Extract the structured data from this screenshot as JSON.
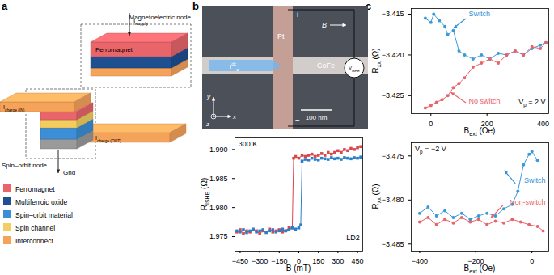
{
  "panel_labels": [
    "a",
    "b",
    "c"
  ],
  "diagram": {
    "magnetoelectric_node": "Magnetoelectric node",
    "spin_orbit_node": "Spin–orbit node",
    "supply_current": [
      {
        "t": "I"
      },
      {
        "t": "supply",
        "sub": true
      }
    ],
    "input_current": [
      {
        "t": "I"
      },
      {
        "t": "charge (IN)",
        "sub": true
      }
    ],
    "output_current": [
      {
        "t": "I"
      },
      {
        "t": "charge (OUT)",
        "sub": true
      }
    ],
    "ferromagnet_label": "Ferromagnet",
    "ground": "Gnd",
    "legend": [
      {
        "label": "Ferromagnet",
        "color": "#e8656a"
      },
      {
        "label": "Multiferroic oxide",
        "color": "#1d4f91"
      },
      {
        "label": "Spin–orbit material",
        "color": "#3a8fd6"
      },
      {
        "label": "Spin channel",
        "color": "#f3cd5f"
      },
      {
        "label": "Interconnect",
        "color": "#f5a35a"
      }
    ]
  },
  "micrograph": {
    "plus": "+",
    "minus": "−",
    "electrode": "Pt",
    "field": "B",
    "channel": "CoFe",
    "current": [
      {
        "t": "I"
      },
      {
        "t": "dc",
        "sup": true
      },
      {
        "t": "c",
        "sub": true
      }
    ],
    "voltage": [
      {
        "t": "V"
      },
      {
        "t": "ISHE",
        "sub": true
      }
    ],
    "scale_bar": "100 nm",
    "axes": [
      "y",
      "z",
      "x"
    ]
  },
  "chart_data": [
    {
      "type": "line",
      "x_label": [
        {
          "t": "B (mT)"
        }
      ],
      "y_label": [
        {
          "t": "R"
        },
        {
          "t": "ISHE",
          "sub": true
        },
        {
          "t": " (Ω)"
        }
      ],
      "xlim": [
        -490,
        490
      ],
      "xticks": [
        -450,
        -300,
        -150,
        0,
        150,
        300,
        450
      ],
      "ylim": [
        1.9725,
        1.992
      ],
      "yticks": [
        1.975,
        {
          "value": 1.98,
          "label": "1.980"
        },
        1.985,
        {
          "value": 1.99,
          "label": "1.990"
        }
      ],
      "marker": "square",
      "line_style": "solid",
      "annotations": [
        {
          "text": "300 K",
          "color": "#000000"
        },
        {
          "text": "LD2",
          "color": "#000000"
        }
      ],
      "series": [
        {
          "color": "#d9464c",
          "x": [
            -475,
            -450,
            -425,
            -400,
            -375,
            -350,
            -325,
            -300,
            -275,
            -250,
            -225,
            -200,
            -175,
            -150,
            -125,
            -100,
            -75,
            -50,
            -40,
            -25,
            0,
            25,
            50,
            75,
            100,
            125,
            150,
            175,
            200,
            225,
            250,
            275,
            300,
            325,
            350,
            375,
            400,
            425,
            450,
            475
          ],
          "values": [
            1.9758,
            1.9762,
            1.9755,
            1.976,
            1.9758,
            1.9762,
            1.976,
            1.9755,
            1.976,
            1.9758,
            1.9763,
            1.9758,
            1.976,
            1.9762,
            1.9758,
            1.976,
            1.9765,
            1.9765,
            1.9885,
            1.9888,
            1.9885,
            1.989,
            1.9888,
            1.989,
            1.9892,
            1.9888,
            1.989,
            1.9893,
            1.989,
            1.9895,
            1.9892,
            1.9895,
            1.9898,
            1.9895,
            1.99,
            1.9898,
            1.9902,
            1.99,
            1.9903,
            1.9905
          ]
        },
        {
          "color": "#2b7fc7",
          "x": [
            -475,
            -450,
            -425,
            -400,
            -375,
            -350,
            -325,
            -300,
            -275,
            -250,
            -225,
            -200,
            -175,
            -150,
            -125,
            -100,
            -75,
            -50,
            -25,
            0,
            15,
            25,
            50,
            75,
            100,
            125,
            150,
            175,
            200,
            225,
            250,
            275,
            300,
            325,
            350,
            375,
            400,
            425,
            450,
            475
          ],
          "values": [
            1.976,
            1.9758,
            1.9762,
            1.9757,
            1.976,
            1.9763,
            1.9758,
            1.976,
            1.9762,
            1.9757,
            1.976,
            1.9762,
            1.9758,
            1.976,
            1.9763,
            1.976,
            1.9762,
            1.9765,
            1.9763,
            1.9765,
            1.977,
            1.988,
            1.9883,
            1.9882,
            1.9885,
            1.9883,
            1.9882,
            1.9885,
            1.9884,
            1.9883,
            1.9886,
            1.9884,
            1.9885,
            1.9883,
            1.9886,
            1.9885,
            1.9884,
            1.9886,
            1.9885,
            1.9887
          ]
        }
      ]
    },
    {
      "type": "line",
      "x_label": [
        {
          "t": "B"
        },
        {
          "t": "ext",
          "sub": true
        },
        {
          "t": " (Oe)"
        }
      ],
      "y_label": [
        {
          "t": "R"
        },
        {
          "t": "xx",
          "sub": true
        },
        {
          "t": " (Ω)"
        }
      ],
      "xlim": [
        -70,
        420
      ],
      "xticks": [
        0,
        200,
        400
      ],
      "ylim": [
        -3.4272,
        -3.4143
      ],
      "yticks": [
        -3.425,
        {
          "value": -3.42,
          "label": "−3.420"
        },
        -3.415
      ],
      "marker": "circle",
      "line_style": "solid",
      "annotations": [
        {
          "text": "Switch",
          "color": "#2f8fd8"
        },
        {
          "text": "No switch",
          "color": "#e8636b"
        },
        {
          "text": [
            {
              "t": "V"
            },
            {
              "t": "p",
              "sub": true
            },
            {
              "t": " = 2 V"
            }
          ],
          "color": "#000000"
        }
      ],
      "series": [
        {
          "color": "#3a9ad9",
          "x": [
            -20,
            0,
            10,
            30,
            50,
            60,
            80,
            100,
            120,
            150,
            180,
            210,
            240,
            270,
            300,
            330,
            360,
            390,
            410
          ],
          "values": [
            -3.4155,
            -3.416,
            -3.415,
            -3.4158,
            -3.4165,
            -3.4175,
            -3.417,
            -3.4195,
            -3.42,
            -3.4205,
            -3.42,
            -3.4205,
            -3.4198,
            -3.42,
            -3.4195,
            -3.42,
            -3.4192,
            -3.4188,
            -3.4185
          ]
        },
        {
          "color": "#e8636b",
          "x": [
            -20,
            0,
            20,
            40,
            60,
            80,
            100,
            120,
            150,
            180,
            210,
            240,
            270,
            300,
            330,
            360,
            390,
            410
          ],
          "values": [
            -3.4265,
            -3.4262,
            -3.4258,
            -3.4255,
            -3.425,
            -3.424,
            -3.4235,
            -3.4228,
            -3.4215,
            -3.421,
            -3.4205,
            -3.421,
            -3.42,
            -3.4195,
            -3.42,
            -3.419,
            -3.4192,
            -3.4185
          ]
        }
      ]
    },
    {
      "type": "line",
      "x_label": [
        {
          "t": "B"
        },
        {
          "t": "ext",
          "sub": true
        },
        {
          "t": " (Oe)"
        }
      ],
      "y_label": [
        {
          "t": "R"
        },
        {
          "t": "xx",
          "sub": true
        },
        {
          "t": " (Ω)"
        }
      ],
      "xlim": [
        -430,
        60
      ],
      "xticks": [
        -400,
        -200,
        0
      ],
      "ylim": [
        -3.4858,
        -3.4735
      ],
      "yticks": [
        -3.485,
        {
          "value": -3.48,
          "label": "−3.480"
        },
        -3.475
      ],
      "marker": "circle",
      "line_style": "solid",
      "annotations": [
        {
          "text": "Switch",
          "color": "#2f8fd8"
        },
        {
          "text": "Non-switch",
          "color": "#e8636b"
        },
        {
          "text": [
            {
              "t": "V"
            },
            {
              "t": "p",
              "sub": true
            },
            {
              "t": " = −2 V"
            }
          ],
          "color": "#000000"
        }
      ],
      "series": [
        {
          "color": "#3a9ad9",
          "x": [
            -400,
            -370,
            -340,
            -310,
            -280,
            -250,
            -220,
            -190,
            -160,
            -130,
            -100,
            -70,
            -50,
            -30,
            -10,
            0,
            20
          ],
          "values": [
            -3.4815,
            -3.4808,
            -3.4818,
            -3.4812,
            -3.482,
            -3.4815,
            -3.4822,
            -3.4818,
            -3.4815,
            -3.4818,
            -3.481,
            -3.4805,
            -3.479,
            -3.476,
            -3.4748,
            -3.4745,
            -3.4755
          ]
        },
        {
          "color": "#e8636b",
          "x": [
            -400,
            -370,
            -340,
            -310,
            -280,
            -250,
            -220,
            -190,
            -160,
            -130,
            -100,
            -70,
            -40,
            -10,
            20,
            40
          ],
          "values": [
            -3.4825,
            -3.482,
            -3.4828,
            -3.4822,
            -3.4826,
            -3.482,
            -3.4825,
            -3.4822,
            -3.4828,
            -3.4824,
            -3.4826,
            -3.4822,
            -3.4825,
            -3.4828,
            -3.483,
            -3.4835
          ]
        }
      ]
    }
  ]
}
